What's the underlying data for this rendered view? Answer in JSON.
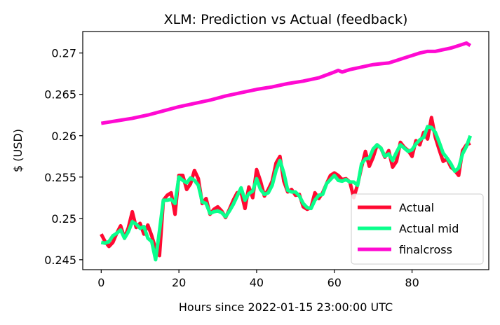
{
  "chart_data": {
    "type": "line",
    "title": "XLM: Prediction vs Actual (feedback)",
    "xlabel": "Hours since 2022-01-15 23:00:00 UTC",
    "ylabel": "$ (USD)",
    "xlim": [
      -4.75,
      99.75
    ],
    "ylim": [
      0.2438,
      0.2726
    ],
    "xticks": [
      0,
      20,
      40,
      60,
      80
    ],
    "yticks": [
      0.245,
      0.25,
      0.255,
      0.26,
      0.265,
      0.27
    ],
    "ytick_labels": [
      "0.245",
      "0.25",
      "0.255",
      "0.26",
      "0.265",
      "0.27"
    ],
    "grid": false,
    "legend": "lower-right",
    "series": [
      {
        "name": "Actual",
        "color": "#ff0a32",
        "points": [
          [
            0,
            0.2481
          ],
          [
            1,
            0.2472
          ],
          [
            2,
            0.2466
          ],
          [
            3,
            0.2471
          ],
          [
            4,
            0.2482
          ],
          [
            5,
            0.2491
          ],
          [
            6,
            0.2476
          ],
          [
            7,
            0.2489
          ],
          [
            8,
            0.2508
          ],
          [
            9,
            0.2489
          ],
          [
            10,
            0.2494
          ],
          [
            11,
            0.2481
          ],
          [
            12,
            0.2492
          ],
          [
            13,
            0.2479
          ],
          [
            14,
            0.2463
          ],
          [
            15,
            0.2455
          ],
          [
            16,
            0.2522
          ],
          [
            17,
            0.2528
          ],
          [
            18,
            0.2531
          ],
          [
            19,
            0.2505
          ],
          [
            20,
            0.2552
          ],
          [
            21,
            0.2552
          ],
          [
            22,
            0.2535
          ],
          [
            23,
            0.2542
          ],
          [
            24,
            0.2558
          ],
          [
            25,
            0.2548
          ],
          [
            26,
            0.2518
          ],
          [
            27,
            0.2524
          ],
          [
            28,
            0.2505
          ],
          [
            29,
            0.2511
          ],
          [
            30,
            0.2514
          ],
          [
            31,
            0.2509
          ],
          [
            32,
            0.2501
          ],
          [
            33,
            0.2511
          ],
          [
            34,
            0.2522
          ],
          [
            35,
            0.2531
          ],
          [
            36,
            0.2532
          ],
          [
            37,
            0.2512
          ],
          [
            38,
            0.2538
          ],
          [
            39,
            0.2525
          ],
          [
            40,
            0.2559
          ],
          [
            41,
            0.2545
          ],
          [
            42,
            0.2527
          ],
          [
            43,
            0.2535
          ],
          [
            44,
            0.2545
          ],
          [
            45,
            0.2567
          ],
          [
            46,
            0.2575
          ],
          [
            47,
            0.2545
          ],
          [
            48,
            0.2532
          ],
          [
            49,
            0.2535
          ],
          [
            50,
            0.2528
          ],
          [
            51,
            0.2529
          ],
          [
            52,
            0.2514
          ],
          [
            53,
            0.2511
          ],
          [
            54,
            0.2513
          ],
          [
            55,
            0.2531
          ],
          [
            56,
            0.2524
          ],
          [
            57,
            0.2531
          ],
          [
            58,
            0.2542
          ],
          [
            59,
            0.2552
          ],
          [
            60,
            0.2555
          ],
          [
            61,
            0.2552
          ],
          [
            62,
            0.2547
          ],
          [
            63,
            0.2548
          ],
          [
            64,
            0.2544
          ],
          [
            65,
            0.2525
          ],
          [
            66,
            0.2541
          ],
          [
            67,
            0.2562
          ],
          [
            68,
            0.2581
          ],
          [
            69,
            0.2563
          ],
          [
            70,
            0.2574
          ],
          [
            71,
            0.2589
          ],
          [
            72,
            0.2585
          ],
          [
            73,
            0.2574
          ],
          [
            74,
            0.2582
          ],
          [
            75,
            0.2562
          ],
          [
            76,
            0.2569
          ],
          [
            77,
            0.2592
          ],
          [
            78,
            0.2586
          ],
          [
            79,
            0.2582
          ],
          [
            80,
            0.2575
          ],
          [
            81,
            0.2594
          ],
          [
            82,
            0.2589
          ],
          [
            83,
            0.2604
          ],
          [
            84,
            0.2596
          ],
          [
            85,
            0.2622
          ],
          [
            86,
            0.2598
          ],
          [
            87,
            0.2583
          ],
          [
            88,
            0.2569
          ],
          [
            89,
            0.2572
          ],
          [
            90,
            0.2562
          ],
          [
            91,
            0.2558
          ],
          [
            92,
            0.2552
          ],
          [
            93,
            0.2582
          ],
          [
            94,
            0.2589
          ],
          [
            95,
            0.2591
          ]
        ]
      },
      {
        "name": "Actual mid",
        "color": "#0aff8c",
        "points": [
          [
            0,
            0.2471
          ],
          [
            1,
            0.247
          ],
          [
            2,
            0.2472
          ],
          [
            3,
            0.2479
          ],
          [
            4,
            0.2482
          ],
          [
            5,
            0.2486
          ],
          [
            6,
            0.2476
          ],
          [
            7,
            0.2484
          ],
          [
            8,
            0.2496
          ],
          [
            9,
            0.2493
          ],
          [
            10,
            0.2488
          ],
          [
            11,
            0.249
          ],
          [
            12,
            0.2476
          ],
          [
            13,
            0.2472
          ],
          [
            14,
            0.245
          ],
          [
            15,
            0.2485
          ],
          [
            16,
            0.2522
          ],
          [
            17,
            0.2522
          ],
          [
            18,
            0.2523
          ],
          [
            19,
            0.2518
          ],
          [
            20,
            0.255
          ],
          [
            21,
            0.2546
          ],
          [
            22,
            0.2543
          ],
          [
            23,
            0.2549
          ],
          [
            24,
            0.2546
          ],
          [
            25,
            0.254
          ],
          [
            26,
            0.252
          ],
          [
            27,
            0.2518
          ],
          [
            28,
            0.2506
          ],
          [
            29,
            0.2508
          ],
          [
            30,
            0.2509
          ],
          [
            31,
            0.2507
          ],
          [
            32,
            0.2502
          ],
          [
            33,
            0.2509
          ],
          [
            34,
            0.2517
          ],
          [
            35,
            0.2527
          ],
          [
            36,
            0.2537
          ],
          [
            37,
            0.2522
          ],
          [
            38,
            0.253
          ],
          [
            39,
            0.2533
          ],
          [
            40,
            0.2548
          ],
          [
            41,
            0.2535
          ],
          [
            42,
            0.2529
          ],
          [
            43,
            0.2531
          ],
          [
            44,
            0.254
          ],
          [
            45,
            0.2558
          ],
          [
            46,
            0.257
          ],
          [
            47,
            0.2555
          ],
          [
            48,
            0.2534
          ],
          [
            49,
            0.2532
          ],
          [
            50,
            0.2532
          ],
          [
            51,
            0.2527
          ],
          [
            52,
            0.2518
          ],
          [
            53,
            0.2513
          ],
          [
            54,
            0.2512
          ],
          [
            55,
            0.2522
          ],
          [
            56,
            0.2528
          ],
          [
            57,
            0.2529
          ],
          [
            58,
            0.2542
          ],
          [
            59,
            0.2547
          ],
          [
            60,
            0.2552
          ],
          [
            61,
            0.2546
          ],
          [
            62,
            0.2545
          ],
          [
            63,
            0.2547
          ],
          [
            64,
            0.2544
          ],
          [
            65,
            0.2544
          ],
          [
            66,
            0.254
          ],
          [
            67,
            0.2566
          ],
          [
            68,
            0.2572
          ],
          [
            69,
            0.2573
          ],
          [
            70,
            0.2584
          ],
          [
            71,
            0.2589
          ],
          [
            72,
            0.2585
          ],
          [
            73,
            0.2575
          ],
          [
            74,
            0.2578
          ],
          [
            75,
            0.257
          ],
          [
            76,
            0.258
          ],
          [
            77,
            0.2589
          ],
          [
            78,
            0.2585
          ],
          [
            79,
            0.2581
          ],
          [
            80,
            0.2583
          ],
          [
            81,
            0.259
          ],
          [
            82,
            0.2595
          ],
          [
            83,
            0.2598
          ],
          [
            84,
            0.2611
          ],
          [
            85,
            0.261
          ],
          [
            86,
            0.2604
          ],
          [
            87,
            0.2592
          ],
          [
            88,
            0.2579
          ],
          [
            89,
            0.2573
          ],
          [
            90,
            0.2566
          ],
          [
            91,
            0.2557
          ],
          [
            92,
            0.2561
          ],
          [
            93,
            0.2578
          ],
          [
            94,
            0.2587
          ],
          [
            95,
            0.26
          ]
        ]
      },
      {
        "name": "finalcross",
        "color": "#ff0ad2",
        "points": [
          [
            0,
            0.2615
          ],
          [
            4,
            0.2618
          ],
          [
            8,
            0.2621
          ],
          [
            12,
            0.2625
          ],
          [
            16,
            0.263
          ],
          [
            20,
            0.2635
          ],
          [
            24,
            0.2639
          ],
          [
            28,
            0.2643
          ],
          [
            32,
            0.2648
          ],
          [
            36,
            0.2652
          ],
          [
            40,
            0.2656
          ],
          [
            44,
            0.2659
          ],
          [
            48,
            0.2663
          ],
          [
            52,
            0.2666
          ],
          [
            56,
            0.267
          ],
          [
            60,
            0.2677
          ],
          [
            61,
            0.2679
          ],
          [
            62,
            0.2677
          ],
          [
            64,
            0.268
          ],
          [
            68,
            0.2684
          ],
          [
            70,
            0.2686
          ],
          [
            72,
            0.2687
          ],
          [
            74,
            0.2688
          ],
          [
            76,
            0.2691
          ],
          [
            78,
            0.2694
          ],
          [
            80,
            0.2697
          ],
          [
            82,
            0.27
          ],
          [
            84,
            0.2702
          ],
          [
            86,
            0.2702
          ],
          [
            88,
            0.2704
          ],
          [
            90,
            0.2706
          ],
          [
            92,
            0.2709
          ],
          [
            94,
            0.2712
          ],
          [
            95,
            0.2709
          ]
        ]
      }
    ]
  }
}
